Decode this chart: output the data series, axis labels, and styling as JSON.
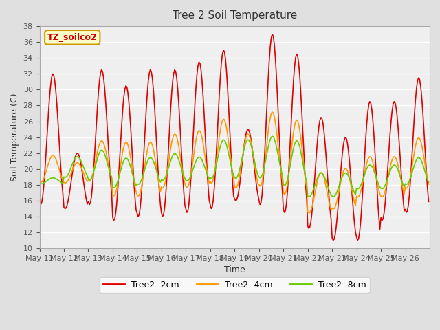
{
  "title": "Tree 2 Soil Temperature",
  "xlabel": "Time",
  "ylabel": "Soil Temperature (C)",
  "ylim": [
    10,
    38
  ],
  "yticks": [
    10,
    12,
    14,
    16,
    18,
    20,
    22,
    24,
    26,
    28,
    30,
    32,
    34,
    36,
    38
  ],
  "annotation_text": "TZ_soilco2",
  "annotation_color": "#cc0000",
  "annotation_bg": "#ffffcc",
  "annotation_border": "#cc9900",
  "color_2cm": "#dd0000",
  "color_4cm": "#ff9900",
  "color_8cm": "#66cc00",
  "label_2cm": "Tree2 -2cm",
  "label_4cm": "Tree2 -4cm",
  "label_8cm": "Tree2 -8cm",
  "background_color": "#e0e0e0",
  "plot_bg_color": "#efefef",
  "grid_color": "#ffffff",
  "xtick_labels": [
    "May 11",
    "May 12",
    "May 13",
    "May 14",
    "May 15",
    "May 16",
    "May 17",
    "May 18",
    "May 19",
    "May 20",
    "May 21",
    "May 22",
    "May 23",
    "May 24",
    "May 25",
    "May 26"
  ],
  "num_days": 16,
  "peaks_2cm": [
    32,
    22,
    32.5,
    30.5,
    32.5,
    32.5,
    33.5,
    35,
    25,
    37,
    34.5,
    26.5,
    24,
    28.5,
    28.5,
    31.5
  ],
  "mins_2cm": [
    15.5,
    15,
    15.5,
    13.5,
    14,
    14,
    14.5,
    15,
    16,
    15.5,
    14.5,
    12.5,
    11,
    11,
    13.5,
    14.5
  ],
  "peaks_4cm": [
    22,
    21,
    24,
    24,
    24,
    25,
    25.5,
    27,
    25,
    28,
    27,
    20,
    20.5,
    22,
    22,
    24.5
  ],
  "mins_4cm": [
    18,
    18,
    18,
    16,
    16,
    17,
    17,
    17.5,
    17,
    17,
    16,
    14,
    14.5,
    16,
    16,
    17
  ],
  "peaks_8cm": [
    19,
    22,
    23,
    22,
    22,
    22.5,
    22,
    24.5,
    24.5,
    25,
    24.5,
    20,
    20,
    21,
    21,
    22
  ],
  "mins_8cm": [
    18,
    18.5,
    18,
    17,
    17.5,
    18,
    18,
    18,
    18,
    18,
    17,
    16,
    16,
    17,
    17,
    17.5
  ]
}
